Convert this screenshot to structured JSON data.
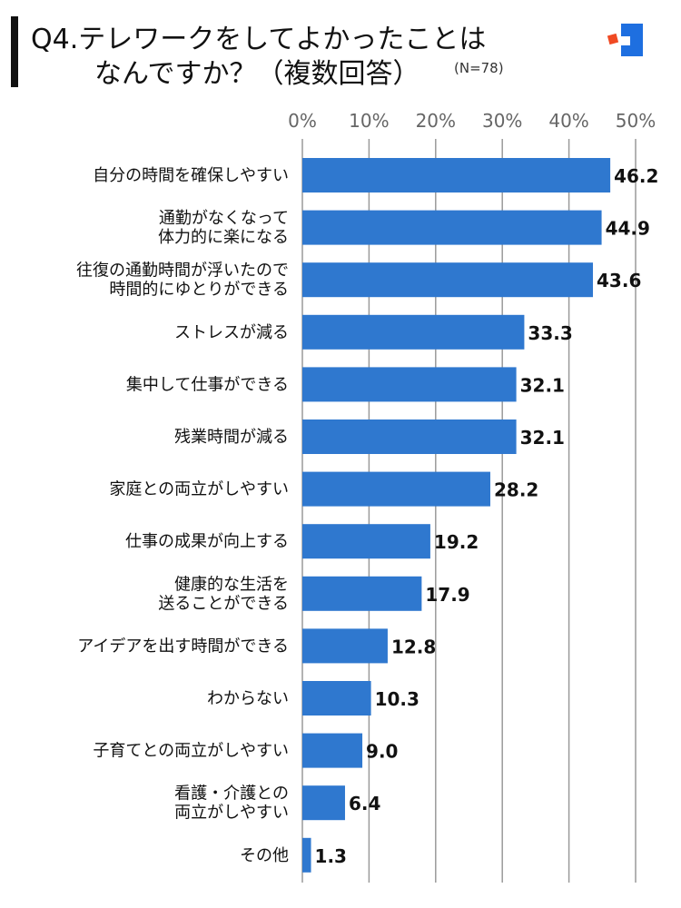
{
  "title": {
    "line1": "Q4.テレワークをしてよかったことは",
    "line2": "なんですか？（複数回答）",
    "note": "(N=78)"
  },
  "colors": {
    "bar": "#2F78CF",
    "grid": "#9a9a9a",
    "accent_red": "#F04A23",
    "accent_blue": "#1E6FE0"
  },
  "icons": {
    "logo": "brand-logo-icon"
  },
  "chart_data": {
    "type": "bar",
    "orientation": "horizontal",
    "unit": "%",
    "xlim": [
      0,
      50
    ],
    "ticks": [
      0,
      10,
      20,
      30,
      40,
      50
    ],
    "tick_labels": [
      "0%",
      "10%",
      "20%",
      "30%",
      "40%",
      "50%"
    ],
    "grid": true,
    "categories": [
      [
        "自分の時間を確保しやすい"
      ],
      [
        "通勤がなくなって",
        "体力的に楽になる"
      ],
      [
        "往復の通勤時間が浮いたので",
        "時間的にゆとりができる"
      ],
      [
        "ストレスが減る"
      ],
      [
        "集中して仕事ができる"
      ],
      [
        "残業時間が減る"
      ],
      [
        "家庭との両立がしやすい"
      ],
      [
        "仕事の成果が向上する"
      ],
      [
        "健康的な生活を",
        "送ることができる"
      ],
      [
        "アイデアを出す時間ができる"
      ],
      [
        "わからない"
      ],
      [
        "子育てとの両立がしやすい"
      ],
      [
        "看護・介護との",
        "両立がしやすい"
      ],
      [
        "その他"
      ]
    ],
    "values": [
      46.2,
      44.9,
      43.6,
      33.3,
      32.1,
      32.1,
      28.2,
      19.2,
      17.9,
      12.8,
      10.3,
      9.0,
      6.4,
      1.3
    ],
    "value_labels": [
      "46.2",
      "44.9",
      "43.6",
      "33.3",
      "32.1",
      "32.1",
      "28.2",
      "19.2",
      "17.9",
      "12.8",
      "10.3",
      "9.0",
      "6.4",
      "1.3"
    ]
  }
}
